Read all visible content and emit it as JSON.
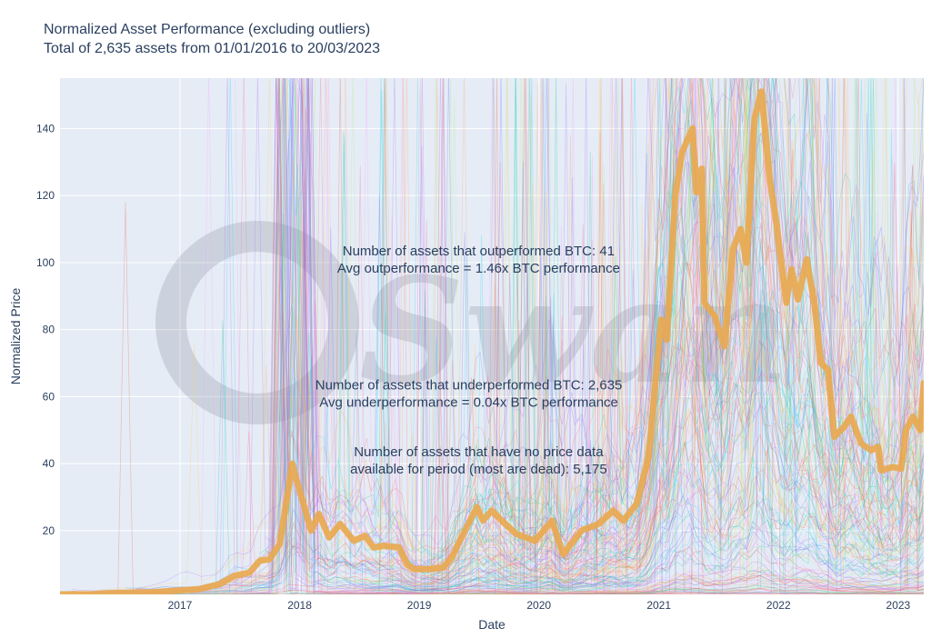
{
  "title": "Normalized Asset Performance (excluding outliers)",
  "subtitle": "Total of 2,635 assets from 01/01/2016 to 20/03/2023",
  "watermark": "Swan",
  "colors": {
    "plot_bg": "#e5ecf6",
    "grid": "#ffffff",
    "btc_line": "#e9a84e",
    "noise": [
      "#636efa",
      "#ef553b",
      "#00cc96",
      "#ab63fa",
      "#ffa15a",
      "#19d3f3",
      "#ff6692",
      "#b6e880",
      "#ff97ff",
      "#fecb52"
    ]
  },
  "annotations": [
    {
      "lines": [
        "Number of assets that outperformed BTC: 41",
        "Avg outperformance = 1.46x BTC performance"
      ],
      "x": "2019-07-01",
      "y": 100
    },
    {
      "lines": [
        "Number of assets that underperformed BTC: 2,635",
        "Avg underperformance = 0.04x BTC performance"
      ],
      "x": "2019-06-01",
      "y": 60
    },
    {
      "lines": [
        "Number of assets that have no price data",
        "available for period (most are dead): 5,175"
      ],
      "x": "2019-07-01",
      "y": 40
    }
  ],
  "chart_data": {
    "type": "line",
    "title": "Normalized Asset Performance (excluding outliers)",
    "subtitle": "Total of 2,635 assets from 01/01/2016 to 20/03/2023",
    "xlabel": "Date",
    "ylabel": "Normalized Price",
    "x_range": [
      "2016-01-01",
      "2023-03-20"
    ],
    "ylim": [
      1,
      155
    ],
    "xticks": [
      {
        "label": "2017",
        "date": "2017-01-01"
      },
      {
        "label": "2018",
        "date": "2018-01-01"
      },
      {
        "label": "2019",
        "date": "2019-01-01"
      },
      {
        "label": "2020",
        "date": "2020-01-01"
      },
      {
        "label": "2021",
        "date": "2021-01-01"
      },
      {
        "label": "2022",
        "date": "2022-01-01"
      },
      {
        "label": "2023",
        "date": "2023-01-01"
      }
    ],
    "yticks": [
      20,
      40,
      60,
      80,
      100,
      120,
      140
    ],
    "grid": true,
    "series": [
      {
        "role": "btc",
        "points": [
          [
            "2016-01-01",
            1.0
          ],
          [
            "2016-04-01",
            1.0
          ],
          [
            "2016-07-01",
            1.5
          ],
          [
            "2016-10-01",
            1.6
          ],
          [
            "2017-01-01",
            2.2
          ],
          [
            "2017-03-01",
            2.6
          ],
          [
            "2017-05-01",
            4.0
          ],
          [
            "2017-06-15",
            6.5
          ],
          [
            "2017-08-01",
            7.5
          ],
          [
            "2017-09-01",
            11.0
          ],
          [
            "2017-10-01",
            11.5
          ],
          [
            "2017-11-01",
            16.0
          ],
          [
            "2017-12-10",
            40.0
          ],
          [
            "2017-12-20",
            36.0
          ],
          [
            "2018-01-10",
            29.0
          ],
          [
            "2018-02-05",
            20.0
          ],
          [
            "2018-03-01",
            25.0
          ],
          [
            "2018-04-01",
            18.0
          ],
          [
            "2018-05-05",
            22.0
          ],
          [
            "2018-06-15",
            17.0
          ],
          [
            "2018-07-20",
            18.5
          ],
          [
            "2018-08-15",
            15.0
          ],
          [
            "2018-09-15",
            15.5
          ],
          [
            "2018-11-01",
            15.0
          ],
          [
            "2018-11-25",
            10.0
          ],
          [
            "2018-12-15",
            8.5
          ],
          [
            "2019-02-01",
            8.5
          ],
          [
            "2019-03-15",
            9.0
          ],
          [
            "2019-04-10",
            12.0
          ],
          [
            "2019-05-15",
            19.0
          ],
          [
            "2019-06-26",
            27.0
          ],
          [
            "2019-07-15",
            23.0
          ],
          [
            "2019-08-10",
            26.0
          ],
          [
            "2019-09-20",
            22.0
          ],
          [
            "2019-10-25",
            19.0
          ],
          [
            "2019-12-20",
            17.0
          ],
          [
            "2020-02-10",
            23.0
          ],
          [
            "2020-03-15",
            13.0
          ],
          [
            "2020-05-10",
            20.0
          ],
          [
            "2020-07-01",
            22.0
          ],
          [
            "2020-08-15",
            26.0
          ],
          [
            "2020-09-15",
            23.0
          ],
          [
            "2020-10-25",
            28.0
          ],
          [
            "2020-12-01",
            42.0
          ],
          [
            "2021-01-08",
            83.0
          ],
          [
            "2021-01-25",
            77.0
          ],
          [
            "2021-02-20",
            120.0
          ],
          [
            "2021-03-13",
            133.0
          ],
          [
            "2021-04-14",
            140.0
          ],
          [
            "2021-04-25",
            121.0
          ],
          [
            "2021-05-12",
            128.0
          ],
          [
            "2021-05-20",
            88.0
          ],
          [
            "2021-06-20",
            84.0
          ],
          [
            "2021-07-20",
            75.0
          ],
          [
            "2021-08-15",
            104.0
          ],
          [
            "2021-09-07",
            110.0
          ],
          [
            "2021-09-25",
            100.0
          ],
          [
            "2021-10-20",
            143.0
          ],
          [
            "2021-11-10",
            151.0
          ],
          [
            "2021-12-05",
            125.0
          ],
          [
            "2021-12-25",
            112.0
          ],
          [
            "2022-01-25",
            88.0
          ],
          [
            "2022-02-10",
            98.0
          ],
          [
            "2022-03-01",
            89.0
          ],
          [
            "2022-03-28",
            101.0
          ],
          [
            "2022-04-20",
            88.0
          ],
          [
            "2022-05-10",
            70.0
          ],
          [
            "2022-06-01",
            68.0
          ],
          [
            "2022-06-20",
            48.0
          ],
          [
            "2022-07-20",
            51.0
          ],
          [
            "2022-08-10",
            54.0
          ],
          [
            "2022-09-10",
            46.0
          ],
          [
            "2022-10-10",
            44.0
          ],
          [
            "2022-11-01",
            45.0
          ],
          [
            "2022-11-10",
            38.0
          ],
          [
            "2022-12-15",
            39.0
          ],
          [
            "2023-01-10",
            38.5
          ],
          [
            "2023-01-25",
            50.0
          ],
          [
            "2023-02-15",
            54.0
          ],
          [
            "2023-03-10",
            50.0
          ],
          [
            "2023-03-20",
            64.0
          ]
        ]
      }
    ]
  }
}
